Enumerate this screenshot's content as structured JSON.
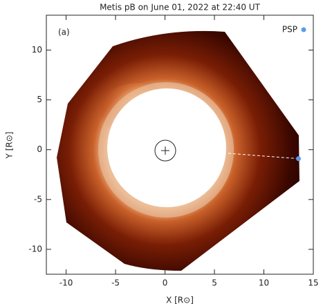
{
  "chart_data": {
    "type": "image",
    "title": "Metis pB on June 01, 2022 at 22:40 UT",
    "xlabel": "X [R⊙]",
    "ylabel": "Y [R⊙]",
    "panel_label": "(a)",
    "xlim": [
      -12,
      15
    ],
    "ylim": [
      -12.5,
      13.5
    ],
    "xticks": [
      -10,
      -5,
      0,
      5,
      10,
      15
    ],
    "yticks": [
      -10,
      -5,
      0,
      5,
      10
    ],
    "psp": {
      "name": "PSP",
      "color": "#5b9bea",
      "x": 13.5,
      "y": -0.9
    }
  }
}
